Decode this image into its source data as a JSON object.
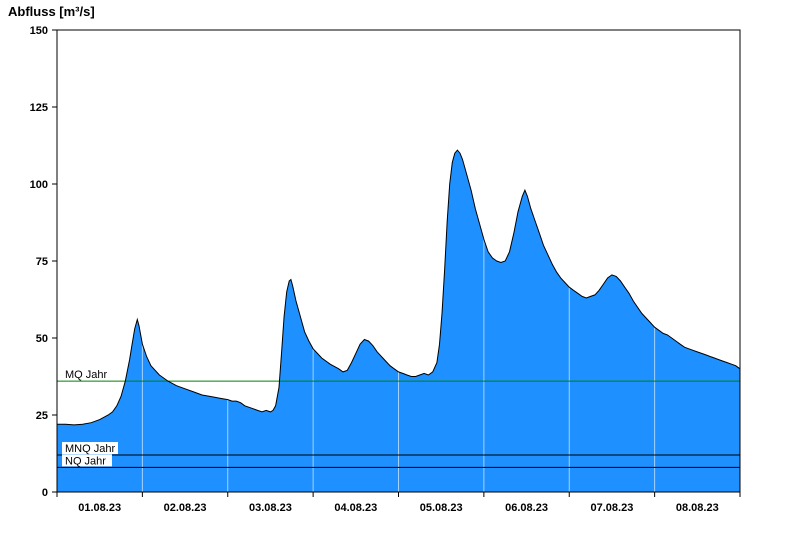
{
  "chart_data": {
    "type": "area",
    "title": "Abfluss [m³/s]",
    "xlabel": "",
    "ylabel": "Abfluss [m³/s]",
    "xlim": [
      0,
      8
    ],
    "ylim": [
      0,
      150
    ],
    "yticks": [
      0,
      25,
      50,
      75,
      100,
      125,
      150
    ],
    "x_labels": [
      "01.08.23",
      "02.08.23",
      "03.08.23",
      "04.08.23",
      "05.08.23",
      "06.08.23",
      "07.08.23",
      "08.08.23"
    ],
    "grid": {
      "vertical_day_lines": true,
      "style": "white-over-fill"
    },
    "legend_position": "none",
    "fill_color": "#1E90FF",
    "line_color": "#000000",
    "reference_lines": [
      {
        "label": "MQ Jahr",
        "value": 36,
        "color": "#008000"
      },
      {
        "label": "MNQ Jahr",
        "value": 12,
        "color": "#000000"
      },
      {
        "label": "NQ Jahr",
        "value": 8,
        "color": "#000000"
      }
    ],
    "series": [
      {
        "name": "Abfluss",
        "unit": "m³/s",
        "points": [
          [
            0.0,
            22
          ],
          [
            0.1,
            22
          ],
          [
            0.2,
            21.8
          ],
          [
            0.3,
            22
          ],
          [
            0.4,
            22.5
          ],
          [
            0.5,
            23.5
          ],
          [
            0.6,
            25
          ],
          [
            0.65,
            26
          ],
          [
            0.7,
            28
          ],
          [
            0.75,
            31
          ],
          [
            0.8,
            36
          ],
          [
            0.85,
            43
          ],
          [
            0.88,
            48
          ],
          [
            0.91,
            53
          ],
          [
            0.94,
            56
          ],
          [
            0.96,
            54
          ],
          [
            1.0,
            48
          ],
          [
            1.05,
            44
          ],
          [
            1.1,
            41
          ],
          [
            1.2,
            38
          ],
          [
            1.3,
            36
          ],
          [
            1.4,
            34.5
          ],
          [
            1.5,
            33.5
          ],
          [
            1.6,
            32.5
          ],
          [
            1.7,
            31.5
          ],
          [
            1.8,
            31
          ],
          [
            1.9,
            30.5
          ],
          [
            2.0,
            30
          ],
          [
            2.05,
            29.5
          ],
          [
            2.1,
            29.5
          ],
          [
            2.15,
            29
          ],
          [
            2.2,
            28
          ],
          [
            2.25,
            27.5
          ],
          [
            2.3,
            27
          ],
          [
            2.35,
            26.5
          ],
          [
            2.4,
            26
          ],
          [
            2.45,
            26.5
          ],
          [
            2.5,
            26
          ],
          [
            2.53,
            26.5
          ],
          [
            2.56,
            28
          ],
          [
            2.6,
            34
          ],
          [
            2.63,
            45
          ],
          [
            2.66,
            57
          ],
          [
            2.69,
            65
          ],
          [
            2.72,
            68.5
          ],
          [
            2.74,
            69
          ],
          [
            2.76,
            67
          ],
          [
            2.8,
            62
          ],
          [
            2.85,
            57
          ],
          [
            2.9,
            52
          ],
          [
            2.95,
            49
          ],
          [
            3.0,
            46.5
          ],
          [
            3.05,
            45
          ],
          [
            3.1,
            43.5
          ],
          [
            3.2,
            41.5
          ],
          [
            3.3,
            40
          ],
          [
            3.35,
            39
          ],
          [
            3.4,
            39.5
          ],
          [
            3.45,
            42
          ],
          [
            3.5,
            45
          ],
          [
            3.55,
            48
          ],
          [
            3.6,
            49.5
          ],
          [
            3.65,
            49
          ],
          [
            3.7,
            47.5
          ],
          [
            3.75,
            45.5
          ],
          [
            3.8,
            44
          ],
          [
            3.85,
            42.5
          ],
          [
            3.9,
            41
          ],
          [
            3.95,
            40
          ],
          [
            4.0,
            39
          ],
          [
            4.05,
            38.5
          ],
          [
            4.1,
            38
          ],
          [
            4.15,
            37.5
          ],
          [
            4.2,
            37.5
          ],
          [
            4.25,
            38
          ],
          [
            4.3,
            38.5
          ],
          [
            4.35,
            38
          ],
          [
            4.4,
            39
          ],
          [
            4.45,
            42
          ],
          [
            4.48,
            48
          ],
          [
            4.51,
            58
          ],
          [
            4.54,
            72
          ],
          [
            4.57,
            88
          ],
          [
            4.6,
            100
          ],
          [
            4.63,
            107
          ],
          [
            4.66,
            110
          ],
          [
            4.69,
            111
          ],
          [
            4.72,
            110
          ],
          [
            4.75,
            108
          ],
          [
            4.8,
            103
          ],
          [
            4.85,
            98
          ],
          [
            4.9,
            92
          ],
          [
            4.95,
            87
          ],
          [
            5.0,
            82
          ],
          [
            5.05,
            78
          ],
          [
            5.1,
            76
          ],
          [
            5.15,
            75
          ],
          [
            5.2,
            74.5
          ],
          [
            5.25,
            75
          ],
          [
            5.3,
            78
          ],
          [
            5.35,
            84
          ],
          [
            5.4,
            91
          ],
          [
            5.45,
            96
          ],
          [
            5.48,
            98
          ],
          [
            5.51,
            96
          ],
          [
            5.55,
            92
          ],
          [
            5.6,
            88
          ],
          [
            5.65,
            84
          ],
          [
            5.7,
            80
          ],
          [
            5.75,
            77
          ],
          [
            5.8,
            74
          ],
          [
            5.85,
            71.5
          ],
          [
            5.9,
            69.5
          ],
          [
            5.95,
            68
          ],
          [
            6.0,
            66.5
          ],
          [
            6.05,
            65.5
          ],
          [
            6.1,
            64.5
          ],
          [
            6.15,
            63.5
          ],
          [
            6.2,
            63
          ],
          [
            6.25,
            63.5
          ],
          [
            6.3,
            64
          ],
          [
            6.35,
            65.5
          ],
          [
            6.4,
            67.5
          ],
          [
            6.45,
            69.5
          ],
          [
            6.5,
            70.5
          ],
          [
            6.55,
            70
          ],
          [
            6.6,
            68.5
          ],
          [
            6.65,
            66.5
          ],
          [
            6.7,
            64.5
          ],
          [
            6.75,
            62
          ],
          [
            6.8,
            60
          ],
          [
            6.85,
            58
          ],
          [
            6.9,
            56.5
          ],
          [
            6.95,
            55
          ],
          [
            7.0,
            53.5
          ],
          [
            7.05,
            52.5
          ],
          [
            7.1,
            51.5
          ],
          [
            7.15,
            51
          ],
          [
            7.2,
            50
          ],
          [
            7.25,
            49
          ],
          [
            7.3,
            48
          ],
          [
            7.35,
            47
          ],
          [
            7.4,
            46.5
          ],
          [
            7.45,
            46
          ],
          [
            7.5,
            45.5
          ],
          [
            7.55,
            45
          ],
          [
            7.6,
            44.5
          ],
          [
            7.65,
            44
          ],
          [
            7.7,
            43.5
          ],
          [
            7.75,
            43
          ],
          [
            7.8,
            42.5
          ],
          [
            7.85,
            42
          ],
          [
            7.9,
            41.5
          ],
          [
            7.95,
            41
          ],
          [
            8.0,
            40
          ]
        ]
      }
    ]
  }
}
